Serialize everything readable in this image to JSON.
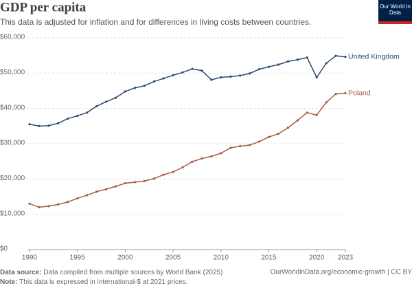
{
  "logo": "Our World in Data",
  "chart_data": {
    "type": "line",
    "title": "GDP per capita",
    "subtitle": "This data is adjusted for inflation and for differences in living costs between countries.",
    "source_label": "Data source:",
    "source": "Data compiled from multiple sources by World Bank (2025)",
    "url": "OurWorldinData.org/economic-growth | CC BY",
    "note_label": "Note:",
    "note": "This data is expressed in international-$ at 2021 prices.",
    "x": [
      1990,
      1991,
      1992,
      1993,
      1994,
      1995,
      1996,
      1997,
      1998,
      1999,
      2000,
      2001,
      2002,
      2003,
      2004,
      2005,
      2006,
      2007,
      2008,
      2009,
      2010,
      2011,
      2012,
      2013,
      2014,
      2015,
      2016,
      2017,
      2018,
      2019,
      2020,
      2021,
      2022,
      2023
    ],
    "xlim": [
      1990,
      2023
    ],
    "xticks": [
      1990,
      1995,
      2000,
      2005,
      2010,
      2015,
      2020,
      2023
    ],
    "ylim": [
      0,
      60000
    ],
    "yticks": [
      {
        "value": 0,
        "label": "$0"
      },
      {
        "value": 10000,
        "label": "$10,000"
      },
      {
        "value": 20000,
        "label": "$20,000"
      },
      {
        "value": 30000,
        "label": "$30,000"
      },
      {
        "value": 40000,
        "label": "$40,000"
      },
      {
        "value": 50000,
        "label": "$50,000"
      },
      {
        "value": 60000,
        "label": "$60,000"
      }
    ],
    "grid": true,
    "series": [
      {
        "name": "United Kingdom",
        "color": "#2c4a6e",
        "values": [
          35500,
          35000,
          35100,
          35800,
          37100,
          37900,
          38800,
          40600,
          41900,
          43000,
          44800,
          45800,
          46400,
          47600,
          48500,
          49400,
          50200,
          51200,
          50700,
          48100,
          48800,
          49000,
          49300,
          49900,
          51100,
          51800,
          52400,
          53300,
          53800,
          54400,
          48800,
          52800,
          54900,
          54600
        ]
      },
      {
        "name": "Poland",
        "color": "#a65a3f",
        "values": [
          13000,
          12000,
          12300,
          12800,
          13500,
          14500,
          15400,
          16400,
          17100,
          17900,
          18800,
          19100,
          19400,
          20100,
          21200,
          22000,
          23300,
          24900,
          25800,
          26400,
          27300,
          28800,
          29300,
          29600,
          30600,
          31900,
          32800,
          34500,
          36600,
          38800,
          38100,
          41700,
          44100,
          44300
        ]
      }
    ]
  }
}
